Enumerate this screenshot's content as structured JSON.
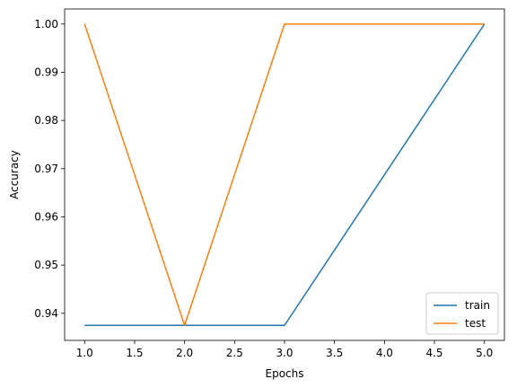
{
  "chart_data": {
    "type": "line",
    "title": "",
    "xlabel": "Epochs",
    "ylabel": "Accuracy",
    "x": [
      1,
      2,
      3,
      5
    ],
    "x_ticks": [
      "1.0",
      "1.5",
      "2.0",
      "2.5",
      "3.0",
      "3.5",
      "4.0",
      "4.5",
      "5.0"
    ],
    "y_ticks": [
      "0.94",
      "0.95",
      "0.96",
      "0.97",
      "0.98",
      "0.99",
      "1.00"
    ],
    "xlim": [
      0.8,
      5.2
    ],
    "ylim": [
      0.934375,
      1.003125
    ],
    "grid": false,
    "legend": "lower-right",
    "series": [
      {
        "name": "train",
        "color": "#1f77b4",
        "x": [
          1,
          2,
          3,
          5
        ],
        "values": [
          0.9375,
          0.9375,
          0.9375,
          1.0
        ]
      },
      {
        "name": "test",
        "color": "#ff7f0e",
        "x": [
          1,
          2,
          3,
          5
        ],
        "values": [
          1.0,
          0.9375,
          1.0,
          1.0
        ]
      }
    ]
  }
}
